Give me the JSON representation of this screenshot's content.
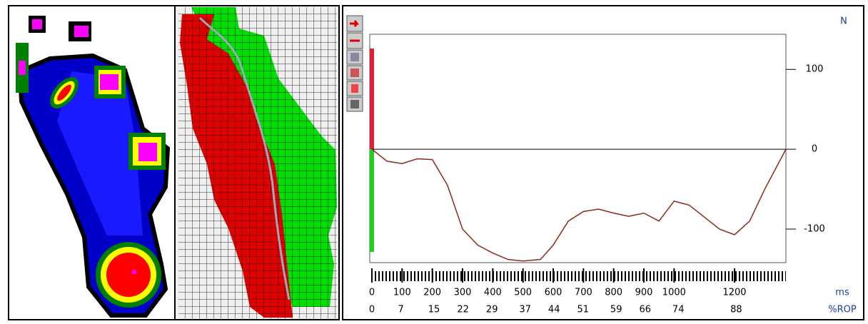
{
  "chart_data": {
    "type": "line",
    "x": [
      0,
      50,
      100,
      150,
      200,
      250,
      300,
      350,
      400,
      450,
      500,
      558,
      600,
      650,
      700,
      750,
      800,
      850,
      900,
      950,
      1000,
      1050,
      1100,
      1150,
      1200,
      1250,
      1300,
      1370
    ],
    "series": [
      {
        "color": "#8b2a1a",
        "values": [
          0,
          -15,
          -18,
          -12,
          -13,
          -45,
          -100,
          -120,
          -130,
          -138,
          -140,
          -138,
          -120,
          -90,
          -78,
          -75,
          -80,
          -84,
          -80,
          -90,
          -65,
          -70,
          -85,
          -100,
          -107,
          -90,
          -50,
          0
        ]
      }
    ],
    "xlim": [
      0,
      1370
    ],
    "xticks": [
      0,
      100,
      200,
      300,
      400,
      500,
      600,
      700,
      800,
      900,
      1000,
      1200
    ],
    "x2lim": [
      0,
      100
    ],
    "x2ticks": [
      0,
      7,
      15,
      22,
      29,
      37,
      44,
      51,
      59,
      66,
      74,
      88
    ],
    "ylim": [
      -142,
      144
    ],
    "yticks": [
      100,
      0,
      -100
    ],
    "y_label": "N",
    "x_label": "ms",
    "x2_label": "%ROP"
  }
}
